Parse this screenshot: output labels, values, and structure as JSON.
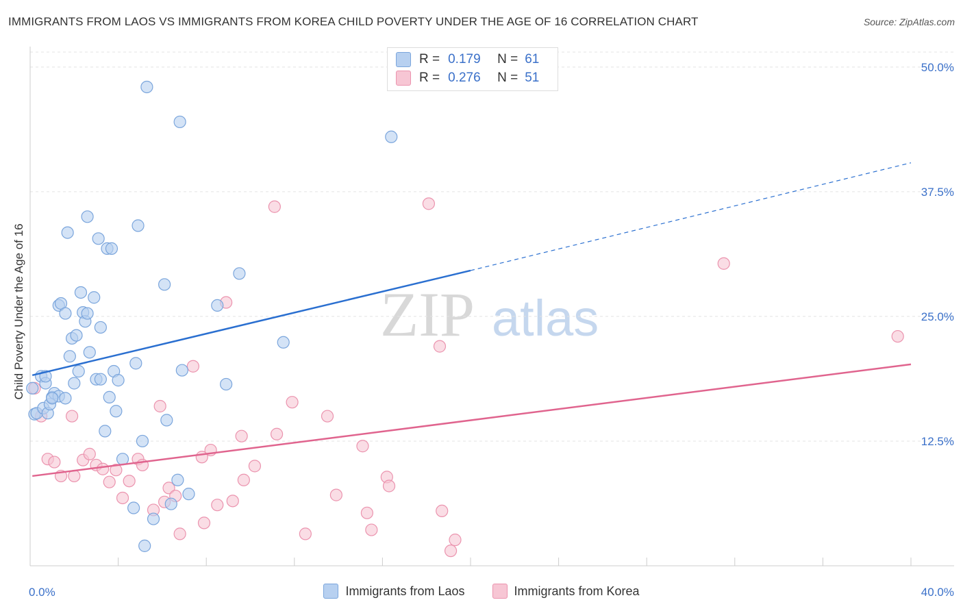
{
  "title": "IMMIGRANTS FROM LAOS VS IMMIGRANTS FROM KOREA CHILD POVERTY UNDER THE AGE OF 16 CORRELATION CHART",
  "source": "Source: ZipAtlas.com",
  "watermark": {
    "zip": "ZIP",
    "atlas": "atlas"
  },
  "colors": {
    "laos_fill": "#b7d0f0",
    "laos_stroke": "#7aa5dc",
    "laos_line": "#2a6fd0",
    "korea_fill": "#f7c6d4",
    "korea_stroke": "#eb93ae",
    "korea_line": "#e0648e",
    "tick_label": "#3a70c9",
    "grid": "#e3e3e3"
  },
  "stats": [
    {
      "r_label": "R =",
      "r_value": "0.179",
      "n_label": "N =",
      "n_value": "61"
    },
    {
      "r_label": "R =",
      "r_value": "0.276",
      "n_label": "N =",
      "n_value": "51"
    }
  ],
  "legend": [
    "Immigrants from Laos",
    "Immigrants from Korea"
  ],
  "chart_data": {
    "type": "scatter",
    "title": "IMMIGRANTS FROM LAOS VS IMMIGRANTS FROM KOREA CHILD POVERTY UNDER THE AGE OF 16 CORRELATION CHART",
    "xlabel": "",
    "ylabel": "Child Poverty Under the Age of 16",
    "xlim": [
      0,
      40
    ],
    "ylim": [
      0,
      51.5
    ],
    "x_tick_labels": [
      "0.0%",
      "40.0%"
    ],
    "y_ticks": [
      12.5,
      25.0,
      37.5,
      50.0
    ],
    "y_tick_labels": [
      "12.5%",
      "25.0%",
      "37.5%",
      "50.0%"
    ],
    "grid": true,
    "legend_position": "bottom",
    "series": [
      {
        "name": "Immigrants from Laos",
        "points": [
          [
            0.2,
            15.2
          ],
          [
            0.3,
            15.3
          ],
          [
            0.5,
            19.0
          ],
          [
            0.6,
            15.8
          ],
          [
            0.7,
            18.3
          ],
          [
            0.7,
            19.0
          ],
          [
            0.8,
            15.3
          ],
          [
            0.9,
            16.2
          ],
          [
            1.0,
            16.9
          ],
          [
            1.1,
            17.3
          ],
          [
            1.3,
            17.0
          ],
          [
            1.6,
            16.8
          ],
          [
            1.3,
            26.1
          ],
          [
            1.4,
            26.3
          ],
          [
            1.6,
            25.3
          ],
          [
            1.8,
            21.0
          ],
          [
            1.9,
            22.8
          ],
          [
            2.0,
            18.3
          ],
          [
            2.1,
            23.1
          ],
          [
            2.2,
            19.5
          ],
          [
            2.3,
            27.4
          ],
          [
            2.4,
            25.4
          ],
          [
            2.5,
            24.5
          ],
          [
            2.6,
            25.3
          ],
          [
            2.7,
            21.4
          ],
          [
            2.9,
            26.9
          ],
          [
            3.0,
            18.7
          ],
          [
            3.1,
            32.8
          ],
          [
            3.2,
            18.7
          ],
          [
            3.2,
            23.9
          ],
          [
            3.4,
            13.5
          ],
          [
            3.5,
            31.8
          ],
          [
            3.6,
            16.9
          ],
          [
            3.7,
            31.8
          ],
          [
            3.8,
            19.5
          ],
          [
            3.9,
            15.5
          ],
          [
            4.0,
            18.6
          ],
          [
            4.2,
            10.7
          ],
          [
            4.7,
            5.8
          ],
          [
            4.8,
            20.3
          ],
          [
            4.9,
            34.1
          ],
          [
            5.1,
            12.5
          ],
          [
            5.2,
            2.0
          ],
          [
            5.3,
            48.0
          ],
          [
            5.6,
            4.7
          ],
          [
            6.1,
            28.2
          ],
          [
            6.2,
            14.6
          ],
          [
            6.4,
            6.2
          ],
          [
            6.7,
            8.6
          ],
          [
            6.8,
            44.5
          ],
          [
            6.9,
            19.6
          ],
          [
            7.2,
            7.2
          ],
          [
            8.5,
            26.1
          ],
          [
            8.9,
            18.2
          ],
          [
            9.5,
            29.3
          ],
          [
            11.5,
            22.4
          ],
          [
            16.4,
            43.0
          ],
          [
            1.7,
            33.4
          ],
          [
            2.6,
            35.0
          ],
          [
            0.1,
            17.8
          ],
          [
            1.0,
            16.8
          ]
        ]
      },
      {
        "name": "Immigrants from Korea",
        "points": [
          [
            0.2,
            17.8
          ],
          [
            0.5,
            15.0
          ],
          [
            0.8,
            10.7
          ],
          [
            1.1,
            10.4
          ],
          [
            1.4,
            9.0
          ],
          [
            1.9,
            15.0
          ],
          [
            2.0,
            9.0
          ],
          [
            2.4,
            10.6
          ],
          [
            2.7,
            11.2
          ],
          [
            3.0,
            10.1
          ],
          [
            3.3,
            9.7
          ],
          [
            3.6,
            8.4
          ],
          [
            3.9,
            9.6
          ],
          [
            4.2,
            6.8
          ],
          [
            4.5,
            8.5
          ],
          [
            4.9,
            10.7
          ],
          [
            5.1,
            10.1
          ],
          [
            5.6,
            5.6
          ],
          [
            5.9,
            16.0
          ],
          [
            6.1,
            6.4
          ],
          [
            6.3,
            7.8
          ],
          [
            6.6,
            7.0
          ],
          [
            6.8,
            3.2
          ],
          [
            7.4,
            20.0
          ],
          [
            7.8,
            10.9
          ],
          [
            7.9,
            4.3
          ],
          [
            8.2,
            11.6
          ],
          [
            8.5,
            6.1
          ],
          [
            8.9,
            26.4
          ],
          [
            9.2,
            6.5
          ],
          [
            9.6,
            13.0
          ],
          [
            9.7,
            8.6
          ],
          [
            10.2,
            10.0
          ],
          [
            11.1,
            36.0
          ],
          [
            11.2,
            13.2
          ],
          [
            11.9,
            16.4
          ],
          [
            12.5,
            3.2
          ],
          [
            13.5,
            15.0
          ],
          [
            13.9,
            7.1
          ],
          [
            15.1,
            12.0
          ],
          [
            15.3,
            5.3
          ],
          [
            15.5,
            3.6
          ],
          [
            16.2,
            8.9
          ],
          [
            16.3,
            8.0
          ],
          [
            18.1,
            36.3
          ],
          [
            18.6,
            22.0
          ],
          [
            18.7,
            5.5
          ],
          [
            19.1,
            1.5
          ],
          [
            19.3,
            2.6
          ],
          [
            31.5,
            30.3
          ],
          [
            39.4,
            23.0
          ]
        ]
      }
    ],
    "trendlines": [
      {
        "series": "Immigrants from Laos",
        "x_start": 0.1,
        "y_start": 19.1,
        "x_solid_end": 20.0,
        "y_solid_end": 29.6,
        "x_end": 40.0,
        "y_end": 40.4,
        "dashed_after": 20.0
      },
      {
        "series": "Immigrants from Korea",
        "x_start": 0.1,
        "y_start": 9.0,
        "x_end": 40.0,
        "y_end": 20.2
      }
    ]
  }
}
